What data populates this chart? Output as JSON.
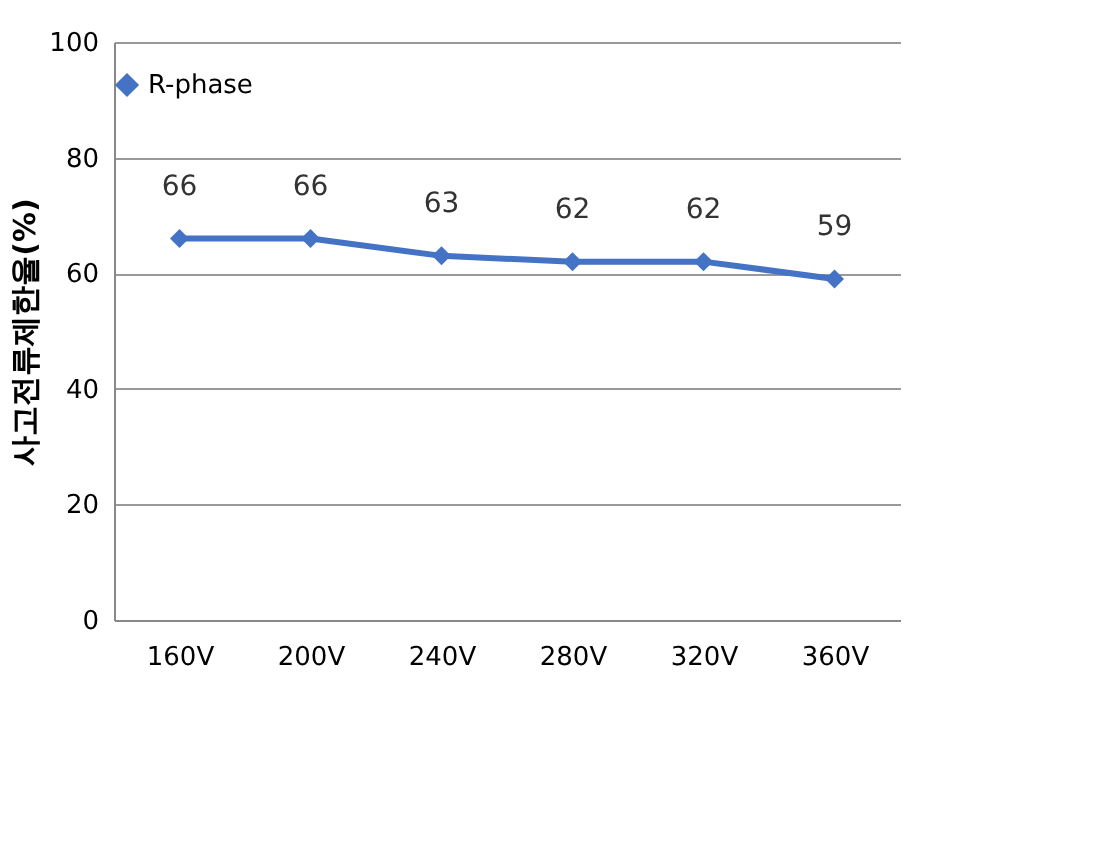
{
  "chart_data": {
    "type": "line",
    "ylabel": "사고전류제한율(%)",
    "categories": [
      "160V",
      "200V",
      "240V",
      "280V",
      "320V",
      "360V"
    ],
    "series": [
      {
        "name": "R-phase",
        "color": "#4472c4",
        "values": [
          66,
          66,
          63,
          62,
          62,
          59
        ]
      }
    ],
    "ylim": [
      0,
      100
    ],
    "yticks": [
      0,
      20,
      40,
      60,
      80,
      100
    ],
    "grid": "y",
    "legend": "top",
    "marker": "diamond",
    "line_style": "solid",
    "data_labels": true
  }
}
